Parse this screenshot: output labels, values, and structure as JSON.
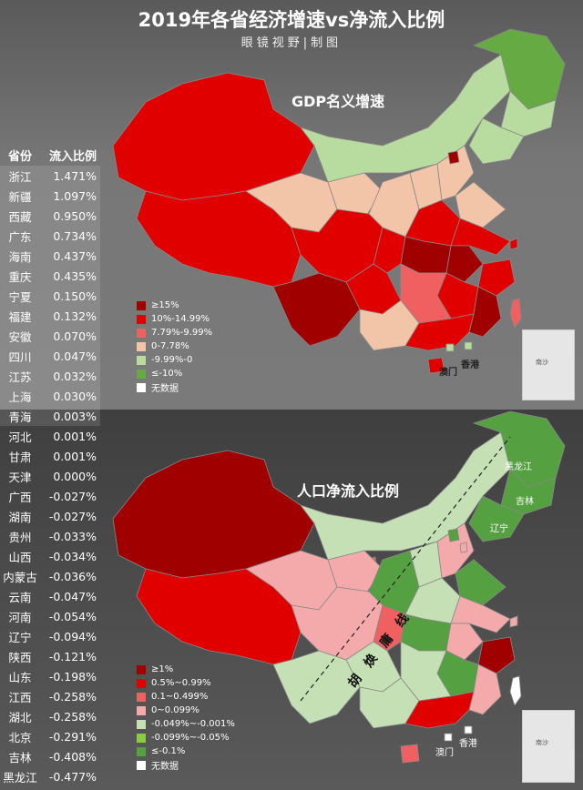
{
  "header": {
    "title": "2019年各省经济增速vs净流入比例",
    "subtitle": "眼镜视野|制图"
  },
  "table": {
    "col_province": "省份",
    "col_ratio": "流入比例",
    "rows": [
      [
        "浙江",
        "1.471%"
      ],
      [
        "新疆",
        "1.097%"
      ],
      [
        "西藏",
        "0.950%"
      ],
      [
        "广东",
        "0.734%"
      ],
      [
        "海南",
        "0.437%"
      ],
      [
        "重庆",
        "0.435%"
      ],
      [
        "宁夏",
        "0.150%"
      ],
      [
        "福建",
        "0.132%"
      ],
      [
        "安徽",
        "0.070%"
      ],
      [
        "四川",
        "0.047%"
      ],
      [
        "江苏",
        "0.032%"
      ],
      [
        "上海",
        "0.030%"
      ],
      [
        "青海",
        "0.003%"
      ],
      [
        "河北",
        "0.001%"
      ],
      [
        "甘肃",
        "0.001%"
      ],
      [
        "天津",
        "0.000%"
      ],
      [
        "广西",
        "-0.027%"
      ],
      [
        "湖南",
        "-0.027%"
      ],
      [
        "贵州",
        "-0.033%"
      ],
      [
        "山西",
        "-0.034%"
      ],
      [
        "内蒙古",
        "-0.036%"
      ],
      [
        "云南",
        "-0.047%"
      ],
      [
        "河南",
        "-0.054%"
      ],
      [
        "辽宁",
        "-0.094%"
      ],
      [
        "陕西",
        "-0.121%"
      ],
      [
        "山东",
        "-0.198%"
      ],
      [
        "江西",
        "-0.258%"
      ],
      [
        "湖北",
        "-0.258%"
      ],
      [
        "北京",
        "-0.291%"
      ],
      [
        "吉林",
        "-0.408%"
      ],
      [
        "黑龙江",
        "-0.477%"
      ]
    ]
  },
  "map_top": {
    "title": "GDP名义增速",
    "legend": [
      {
        "label": "≥15%",
        "color": "#a00000"
      },
      {
        "label": "10%-14.99%",
        "color": "#e00000"
      },
      {
        "label": "7.79%-9.99%",
        "color": "#f06060"
      },
      {
        "label": "0-7.78%",
        "color": "#f2c4a8"
      },
      {
        "label": "-9.99%-0",
        "color": "#b8dca0"
      },
      {
        "label": "≤-10%",
        "color": "#66aa44"
      },
      {
        "label": "无数据",
        "color": "#ffffff"
      }
    ],
    "macau": "澳门",
    "hongkong": "香港"
  },
  "map_bottom": {
    "title": "人口净流入比例",
    "line_label": "胡焕庸线",
    "heilongjiang": "黑龙江",
    "jilin": "吉林",
    "liaoning": "辽宁",
    "legend": [
      {
        "label": "≥1%",
        "color": "#a00000"
      },
      {
        "label": "0.5%~0.99%",
        "color": "#e00000"
      },
      {
        "label": "0.1~0.499%",
        "color": "#f06060"
      },
      {
        "label": "0~0.099%",
        "color": "#f4aaaa"
      },
      {
        "label": "-0.049%~-0.001%",
        "color": "#c4e0b4"
      },
      {
        "label": "-0.099%~-0.05%",
        "color": "#88cc44"
      },
      {
        "label": "≤-0.1%",
        "color": "#55a040"
      },
      {
        "label": "无数据",
        "color": "#ffffff"
      }
    ],
    "macau": "澳门",
    "hongkong": "香港"
  },
  "inset": {
    "label": "南沙"
  }
}
